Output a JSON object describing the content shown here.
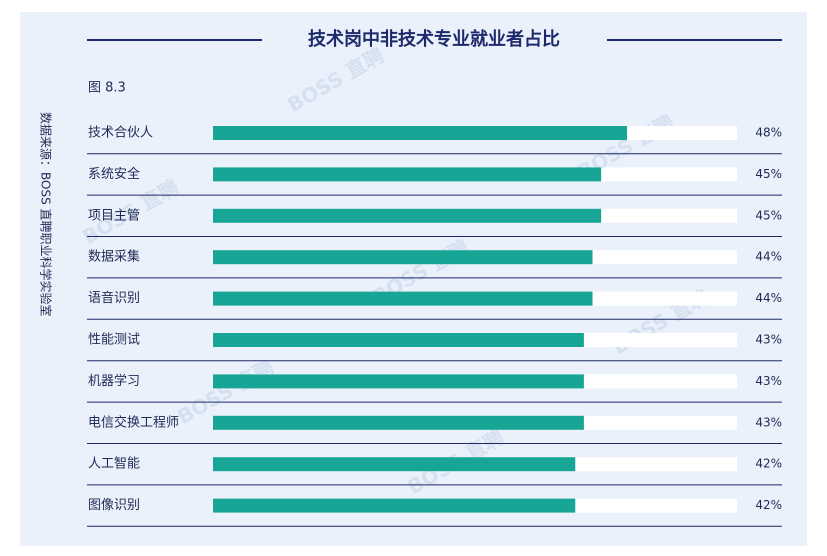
{
  "chart_data": {
    "type": "bar",
    "orientation": "horizontal",
    "title": "技术岗中非技术专业就业者占比",
    "subtitle": "图 8.3",
    "source": "数据来源：BOSS 直聘职业科学实验室",
    "watermark": "BOSS 直聘",
    "categories": [
      "技术合伙人",
      "系统安全",
      "项目主管",
      "数据采集",
      "语音识别",
      "性能测试",
      "机器学习",
      "电信交换工程师",
      "人工智能",
      "图像识别"
    ],
    "values": [
      48,
      45,
      45,
      44,
      44,
      43,
      43,
      43,
      42,
      42
    ],
    "value_labels": [
      "48%",
      "45%",
      "45%",
      "44%",
      "44%",
      "43%",
      "43%",
      "43%",
      "42%",
      "42%"
    ],
    "color": "#17a595",
    "xlim": [
      0,
      60.75
    ]
  }
}
